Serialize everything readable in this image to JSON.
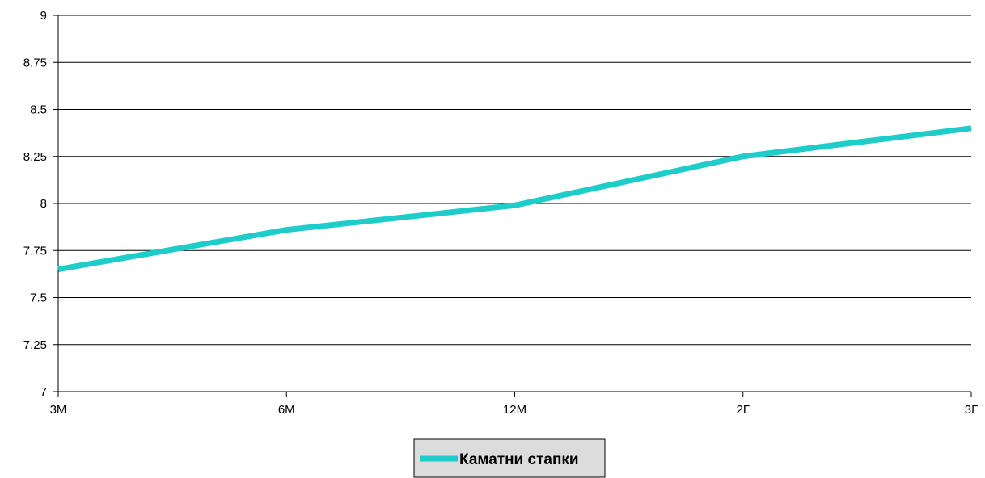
{
  "chart_data": {
    "type": "line",
    "categories": [
      "3M",
      "6M",
      "12M",
      "2Г",
      "3Г"
    ],
    "series": [
      {
        "name": "Каматни стапки",
        "values": [
          7.65,
          7.86,
          7.99,
          8.25,
          8.4
        ],
        "color": "#1ecdc9"
      }
    ],
    "ylim": [
      7,
      9
    ],
    "yticks": [
      "7",
      "7.25",
      "7.5",
      "7.75",
      "8",
      "8.25",
      "8.5",
      "8.75",
      "9"
    ],
    "grid": true,
    "legend_position": "bottom"
  }
}
